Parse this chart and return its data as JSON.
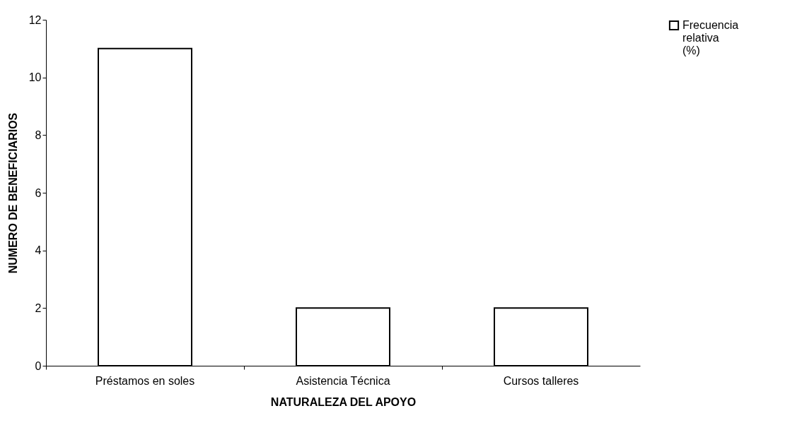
{
  "chart_data": {
    "type": "bar",
    "xlabel": "NATURALEZA DEL APOYO",
    "ylabel": "NUMERO DE BENEFICIARIOS",
    "categories": [
      "Préstamos en soles",
      "Asistencia Técnica",
      "Cursos talleres"
    ],
    "series": [
      {
        "name": "Frecuencia relativa (%)",
        "color": "#ffffff",
        "values": [
          11,
          2,
          2
        ]
      }
    ],
    "ylim": [
      0,
      12
    ],
    "yticks": [
      0,
      2,
      4,
      6,
      8,
      10,
      12
    ],
    "grid": false,
    "legend": "right"
  }
}
